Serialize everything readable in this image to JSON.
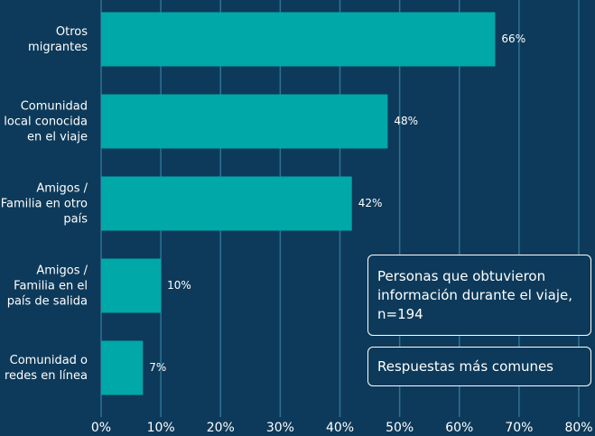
{
  "chart_data": {
    "type": "bar",
    "orientation": "horizontal",
    "title": "Personas que obtuvieron información durante el viaje, n=194",
    "subtitle": "Respuestas más comunes",
    "categories": [
      "Otros migrantes",
      "Comunidad local conocida en el viaje",
      "Amigos / Familia en otro país",
      "Amigos / Familia en el país de salida",
      "Comunidad o redes en línea"
    ],
    "values": [
      66,
      48,
      42,
      10,
      7
    ],
    "value_labels": [
      "66%",
      "48%",
      "42%",
      "10%",
      "7%"
    ],
    "color": "#00a8a8",
    "xlim": [
      0,
      80
    ],
    "xticks": [
      {
        "value": 0,
        "label": "0%"
      },
      {
        "value": 10,
        "label": "10%"
      },
      {
        "value": 20,
        "label": "20%"
      },
      {
        "value": 30,
        "label": "30%"
      },
      {
        "value": 40,
        "label": "40%"
      },
      {
        "value": 50,
        "label": "50%"
      },
      {
        "value": 60,
        "label": "60%"
      },
      {
        "value": 70,
        "label": "70%"
      },
      {
        "value": 80,
        "label": "80%"
      }
    ],
    "grid": true
  }
}
